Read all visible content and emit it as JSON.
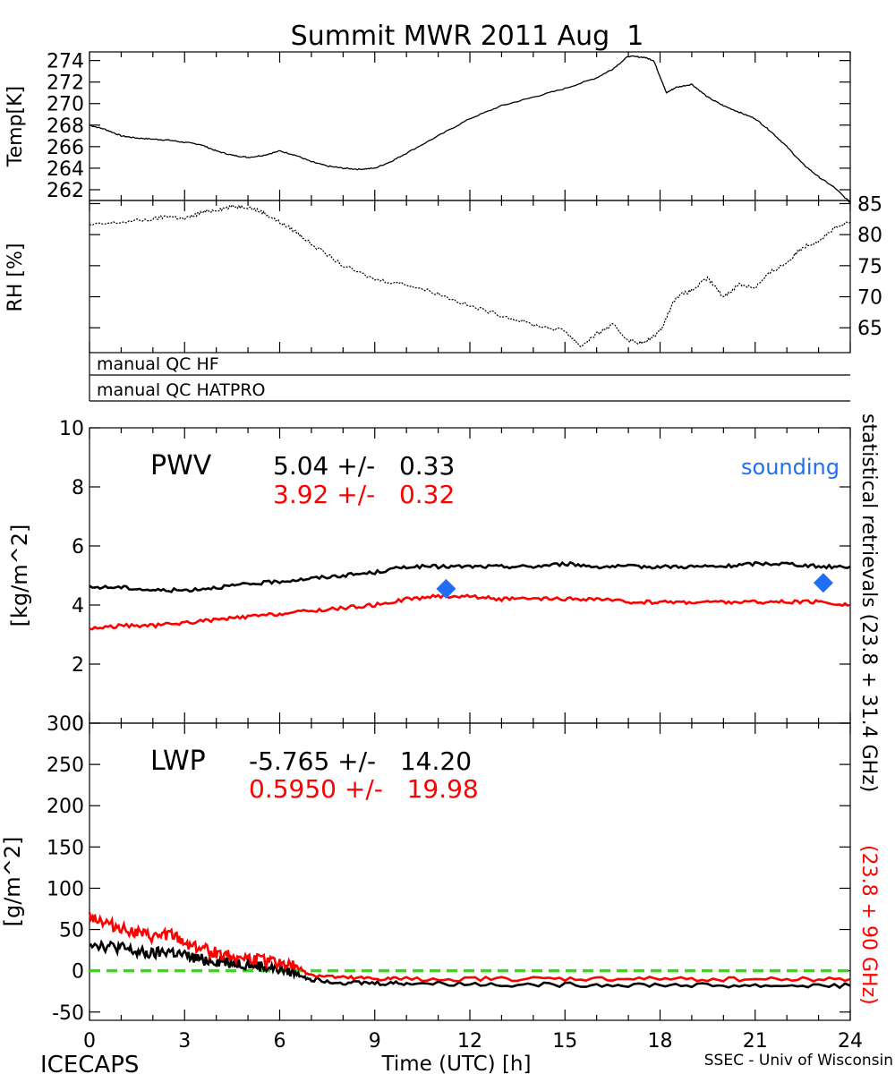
{
  "title": "Summit MWR 2011 Aug  1",
  "footer": {
    "left": "ICECAPS",
    "center": "Time (UTC) [h]",
    "right": "SSEC - Univ of Wisconsin"
  },
  "colors": {
    "black": "#000000",
    "red": "#ff0000",
    "blue": "#1f6ff2",
    "green": "#33dd11"
  },
  "x_ticks": [
    "0",
    "3",
    "6",
    "9",
    "12",
    "15",
    "18",
    "21",
    "24"
  ],
  "qc_labels": [
    "manual QC HF",
    "manual QC HATPRO"
  ],
  "side_label": {
    "black": "statistical retrievals (23.8 + 31.4 GHz)",
    "red": "(23.8 + 90 GHz)"
  },
  "chart_data": [
    {
      "type": "line",
      "panel": "temperature",
      "ylabel": "Temp[K]",
      "ylim": [
        261,
        274.8
      ],
      "yticks": [
        "262",
        "264",
        "266",
        "268",
        "270",
        "272",
        "274"
      ],
      "series": [
        {
          "color": "#000000",
          "x": [
            0,
            0.5,
            1,
            1.5,
            2,
            2.5,
            3,
            3.5,
            4,
            4.5,
            5,
            5.5,
            6,
            6.5,
            7,
            7.5,
            8,
            8.5,
            9,
            9.5,
            10,
            11,
            12,
            13,
            14,
            15,
            16,
            16.5,
            17,
            17.5,
            17.8,
            18,
            18.2,
            18.5,
            19,
            19.5,
            20,
            20.5,
            21,
            21.5,
            22,
            22.5,
            23,
            23.5,
            24
          ],
          "y": [
            268.0,
            267.6,
            267.0,
            266.8,
            266.7,
            266.6,
            266.4,
            266.2,
            265.6,
            265.2,
            265.0,
            265.2,
            265.6,
            265.2,
            264.6,
            264.2,
            264.0,
            263.9,
            264.0,
            264.6,
            265.4,
            267.0,
            268.6,
            269.8,
            270.6,
            271.4,
            272.4,
            273.2,
            274.4,
            274.3,
            274.0,
            272.5,
            271.0,
            271.5,
            271.8,
            270.6,
            269.8,
            269.2,
            268.6,
            267.4,
            266.0,
            264.4,
            263.2,
            262.2,
            260.8
          ]
        }
      ]
    },
    {
      "type": "scatter",
      "panel": "relative-humidity",
      "ylabel": "RH [%]",
      "ylim": [
        61,
        85.5
      ],
      "yticks": [
        "65",
        "70",
        "75",
        "80",
        "85"
      ],
      "series": [
        {
          "color": "#000000",
          "x": [
            0,
            1,
            2,
            2.5,
            3,
            3.5,
            4,
            4.5,
            5,
            5.5,
            6,
            6.5,
            7,
            8,
            9,
            10,
            11,
            12,
            13,
            14,
            15,
            15.5,
            16,
            16.5,
            17,
            17.5,
            18,
            18.5,
            19,
            19.5,
            20,
            20.5,
            21,
            21.5,
            22,
            22.5,
            23,
            23.5,
            24
          ],
          "y": [
            81.5,
            82,
            82.5,
            83,
            82.5,
            83.5,
            84,
            84.5,
            84.5,
            83.5,
            82,
            80.5,
            78.5,
            75,
            72.8,
            72,
            70.5,
            68.5,
            67,
            65.5,
            64.5,
            62,
            64,
            65.5,
            63,
            62.5,
            64.5,
            70,
            71,
            73,
            70,
            72,
            71.5,
            74,
            75.5,
            78,
            79,
            81,
            82
          ]
        }
      ]
    },
    {
      "type": "line",
      "panel": "pwv",
      "ylabel": "[kg/m^2]",
      "ylim": [
        0,
        10
      ],
      "yticks": [
        "0",
        "2",
        "4",
        "6",
        "8",
        "10"
      ],
      "title": "PWV",
      "stats": [
        {
          "color": "#000000",
          "text": "5.04 +/-   0.33"
        },
        {
          "color": "#ff0000",
          "text": "3.92 +/-   0.32"
        }
      ],
      "marker_label": "sounding",
      "series": [
        {
          "color": "#000000",
          "x": [
            0,
            1,
            2,
            3,
            4,
            5,
            6,
            7,
            8,
            9,
            10,
            11,
            12,
            13,
            14,
            15,
            16,
            17,
            18,
            19,
            20,
            21,
            22,
            23,
            24
          ],
          "y": [
            4.6,
            4.6,
            4.5,
            4.5,
            4.6,
            4.7,
            4.8,
            4.9,
            5.0,
            5.1,
            5.3,
            5.3,
            5.3,
            5.3,
            5.3,
            5.4,
            5.3,
            5.3,
            5.3,
            5.3,
            5.3,
            5.4,
            5.4,
            5.3,
            5.3
          ]
        },
        {
          "color": "#ff0000",
          "x": [
            0,
            1,
            2,
            3,
            4,
            5,
            6,
            7,
            8,
            9,
            10,
            11,
            12,
            13,
            14,
            15,
            16,
            17,
            18,
            19,
            20,
            21,
            22,
            23,
            24
          ],
          "y": [
            3.2,
            3.3,
            3.3,
            3.4,
            3.5,
            3.6,
            3.7,
            3.8,
            3.9,
            4.0,
            4.2,
            4.3,
            4.3,
            4.2,
            4.2,
            4.2,
            4.2,
            4.1,
            4.1,
            4.1,
            4.1,
            4.1,
            4.1,
            4.1,
            4.0
          ]
        }
      ],
      "markers": [
        {
          "color": "#1f6ff2",
          "x": 11.25,
          "y": 4.55
        },
        {
          "color": "#1f6ff2",
          "x": 23.15,
          "y": 4.75
        }
      ]
    },
    {
      "type": "line",
      "panel": "lwp",
      "ylabel": "[g/m^2]",
      "ylim": [
        -60,
        300
      ],
      "yticks": [
        "-50",
        "0",
        "50",
        "100",
        "150",
        "200",
        "250",
        "300"
      ],
      "title": "LWP",
      "stats": [
        {
          "color": "#000000",
          "text": "-5.765 +/-   14.20"
        },
        {
          "color": "#ff0000",
          "text": "0.5950 +/-   19.98"
        }
      ],
      "reference_line": {
        "color": "#33dd11",
        "y": 0
      },
      "series": [
        {
          "color": "#000000",
          "x": [
            0,
            0.5,
            1,
            1.5,
            2,
            2.5,
            3,
            3.5,
            4,
            4.5,
            5,
            5.5,
            6,
            6.5,
            7,
            8,
            9,
            10,
            12,
            14,
            16,
            18,
            20,
            22,
            24
          ],
          "y": [
            35,
            30,
            28,
            22,
            20,
            24,
            18,
            14,
            12,
            10,
            8,
            5,
            2,
            -3,
            -10,
            -14,
            -15,
            -15,
            -16,
            -17,
            -17,
            -17,
            -18,
            -18,
            -18
          ]
        },
        {
          "color": "#ff0000",
          "x": [
            0,
            0.5,
            1,
            1.5,
            2,
            2.5,
            3,
            3.5,
            4,
            4.5,
            5,
            5.5,
            6,
            6.5,
            7,
            8,
            9,
            10,
            12,
            14,
            16,
            18,
            20,
            22,
            24
          ],
          "y": [
            68,
            58,
            52,
            46,
            40,
            45,
            34,
            28,
            22,
            18,
            15,
            12,
            10,
            5,
            -5,
            -9,
            -10,
            -10,
            -10,
            -10,
            -10,
            -10,
            -10,
            -10,
            -10
          ]
        }
      ]
    }
  ]
}
